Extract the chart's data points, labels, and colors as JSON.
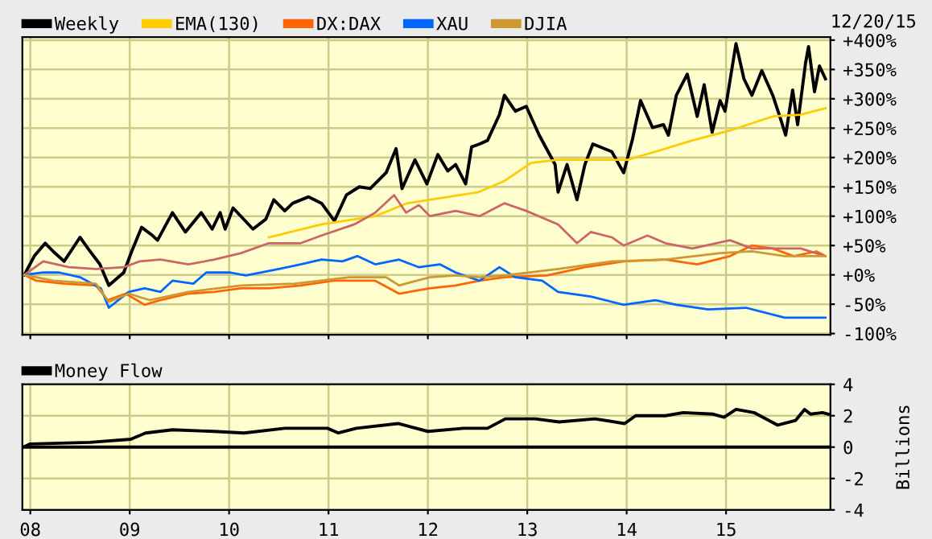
{
  "chart_data": [
    {
      "type": "line",
      "annotations": [
        "12/20/15"
      ],
      "legend": "top",
      "grid": true,
      "tick_labels": "y",
      "xlim": [
        2007.92,
        2016.05
      ],
      "ylim": [
        -102,
        405
      ],
      "xticks": [
        {
          "value": 2008,
          "label": null
        },
        {
          "value": 2009,
          "label": null
        },
        {
          "value": 2010,
          "label": null
        },
        {
          "value": 2011,
          "label": null
        },
        {
          "value": 2012,
          "label": null
        },
        {
          "value": 2013,
          "label": null
        },
        {
          "value": 2014,
          "label": null
        },
        {
          "value": 2015,
          "label": null
        }
      ],
      "yticks": [
        {
          "value": -100,
          "label": "-100%"
        },
        {
          "value": -50,
          "label": "-50%"
        },
        {
          "value": 0,
          "label": "+0%"
        },
        {
          "value": 50,
          "label": "+50%"
        },
        {
          "value": 100,
          "label": "+100%"
        },
        {
          "value": 150,
          "label": "+150%"
        },
        {
          "value": 200,
          "label": "+200%"
        },
        {
          "value": 250,
          "label": "+250%"
        },
        {
          "value": 300,
          "label": "+300%"
        },
        {
          "value": 350,
          "label": "+350%"
        },
        {
          "value": 400,
          "label": "+400%"
        }
      ],
      "series": [
        {
          "name": "Weekly",
          "color": "#000000",
          "x": [
            2007.94,
            2008.04,
            2008.15,
            2008.23,
            2008.34,
            2008.5,
            2008.58,
            2008.7,
            2008.79,
            2008.94,
            2009.02,
            2009.12,
            2009.23,
            2009.28,
            2009.43,
            2009.56,
            2009.72,
            2009.83,
            2009.91,
            2009.96,
            2010.04,
            2010.24,
            2010.37,
            2010.45,
            2010.56,
            2010.64,
            2010.8,
            2010.93,
            2011.06,
            2011.18,
            2011.31,
            2011.42,
            2011.58,
            2011.68,
            2011.74,
            2011.87,
            2011.99,
            2012.1,
            2012.2,
            2012.28,
            2012.38,
            2012.44,
            2012.52,
            2012.6,
            2012.72,
            2012.77,
            2012.88,
            2012.99,
            2013.12,
            2013.28,
            2013.31,
            2013.4,
            2013.5,
            2013.58,
            2013.66,
            2013.85,
            2013.97,
            2014.06,
            2014.14,
            2014.26,
            2014.37,
            2014.42,
            2014.5,
            2014.61,
            2014.71,
            2014.78,
            2014.86,
            2014.94,
            2014.99,
            2015.1,
            2015.18,
            2015.26,
            2015.36,
            2015.47,
            2015.55,
            2015.6,
            2015.67,
            2015.72,
            2015.8,
            2015.83,
            2015.89,
            2015.94,
            2016.0
          ],
          "values": [
            0,
            32,
            54,
            40,
            23,
            64,
            45,
            18,
            -18,
            4,
            40,
            81,
            67,
            59,
            106,
            73,
            106,
            78,
            106,
            78,
            114,
            78,
            95,
            128,
            109,
            122,
            133,
            122,
            92,
            136,
            150,
            147,
            174,
            215,
            147,
            196,
            155,
            205,
            177,
            188,
            155,
            218,
            223,
            229,
            273,
            306,
            279,
            287,
            238,
            188,
            141,
            188,
            128,
            188,
            223,
            210,
            174,
            232,
            297,
            251,
            256,
            238,
            306,
            342,
            270,
            324,
            243,
            297,
            279,
            394,
            334,
            306,
            348,
            306,
            265,
            238,
            315,
            256,
            361,
            389,
            312,
            356,
            334
          ]
        },
        {
          "name": "EMA(130)",
          "color": "#ffcc00",
          "x": [
            2010.4,
            2010.93,
            2011.47,
            2011.79,
            2012.51,
            2012.77,
            2013.04,
            2013.31,
            2013.74,
            2014.01,
            2014.29,
            2014.66,
            2015.04,
            2015.47,
            2015.75,
            2016.0
          ],
          "values": [
            64,
            86,
            100,
            122,
            141,
            160,
            191,
            196,
            196,
            196,
            210,
            229,
            246,
            270,
            273,
            284
          ]
        },
        {
          "name": "DX:DAX",
          "color": "#ff6600",
          "x": [
            2007.94,
            2008.06,
            2008.34,
            2008.66,
            2008.78,
            2008.96,
            2009.15,
            2009.31,
            2009.59,
            2009.85,
            2010.12,
            2010.4,
            2010.72,
            2011.05,
            2011.47,
            2011.71,
            2012.02,
            2012.28,
            2012.52,
            2012.77,
            2013.2,
            2013.58,
            2013.97,
            2014.39,
            2014.71,
            2015.04,
            2015.26,
            2015.47,
            2015.68,
            2015.91,
            2016.0
          ],
          "values": [
            0,
            -10,
            -15,
            -18,
            -43,
            -32,
            -51,
            -43,
            -32,
            -29,
            -23,
            -23,
            -18,
            -10,
            -10,
            -32,
            -23,
            -18,
            -10,
            -4,
            -1,
            13,
            23,
            26,
            18,
            32,
            50,
            45,
            32,
            40,
            32
          ]
        },
        {
          "color": "#cc6666",
          "x": [
            2007.94,
            2008.13,
            2008.39,
            2008.66,
            2008.94,
            2009.1,
            2009.31,
            2009.59,
            2009.85,
            2010.12,
            2010.4,
            2010.72,
            2010.93,
            2011.26,
            2011.47,
            2011.66,
            2011.78,
            2011.91,
            2012.02,
            2012.28,
            2012.52,
            2012.77,
            2012.99,
            2013.31,
            2013.5,
            2013.64,
            2013.85,
            2013.97,
            2014.21,
            2014.39,
            2014.66,
            2015.04,
            2015.26,
            2015.47,
            2015.75,
            2016.0
          ],
          "values": [
            0,
            23,
            13,
            10,
            13,
            23,
            26,
            18,
            26,
            37,
            54,
            54,
            67,
            86,
            106,
            136,
            106,
            119,
            100,
            109,
            100,
            122,
            109,
            86,
            54,
            73,
            64,
            50,
            67,
            54,
            45,
            59,
            45,
            45,
            45,
            32
          ]
        },
        {
          "name": "XAU",
          "color": "#0066ff",
          "x": [
            2007.94,
            2008.13,
            2008.29,
            2008.5,
            2008.71,
            2008.79,
            2008.99,
            2009.15,
            2009.31,
            2009.43,
            2009.64,
            2009.77,
            2010.01,
            2010.17,
            2010.5,
            2010.72,
            2010.93,
            2011.14,
            2011.29,
            2011.47,
            2011.71,
            2011.91,
            2012.12,
            2012.28,
            2012.52,
            2012.72,
            2012.88,
            2013.15,
            2013.31,
            2013.64,
            2013.97,
            2014.29,
            2014.5,
            2014.82,
            2015.2,
            2015.59,
            2016.0
          ],
          "values": [
            0,
            4,
            4,
            -4,
            -23,
            -56,
            -29,
            -23,
            -29,
            -10,
            -15,
            4,
            4,
            -1,
            10,
            18,
            26,
            23,
            32,
            18,
            26,
            13,
            18,
            4,
            -10,
            13,
            -4,
            -10,
            -29,
            -37,
            -51,
            -43,
            -51,
            -59,
            -56,
            -73,
            -73
          ]
        },
        {
          "name": "DJIA",
          "color": "#cc9933",
          "x": [
            2007.94,
            2008.23,
            2008.66,
            2008.79,
            2008.99,
            2009.2,
            2009.59,
            2010.12,
            2010.66,
            2011.21,
            2011.58,
            2011.71,
            2012.02,
            2012.28,
            2012.52,
            2012.77,
            2013.31,
            2013.85,
            2014.39,
            2014.94,
            2015.26,
            2015.59,
            2016.0
          ],
          "values": [
            0,
            -10,
            -15,
            -46,
            -32,
            -43,
            -29,
            -18,
            -15,
            -4,
            -4,
            -18,
            -4,
            -1,
            -4,
            -1,
            10,
            23,
            26,
            37,
            40,
            32,
            32
          ]
        }
      ]
    },
    {
      "type": "line",
      "ylabel": "Billions",
      "legend": "top",
      "grid": true,
      "xlim": [
        2007.92,
        2016.05
      ],
      "ylim": [
        -4,
        4
      ],
      "xticks": [
        {
          "value": 2008,
          "label": "08"
        },
        {
          "value": 2009,
          "label": "09"
        },
        {
          "value": 2010,
          "label": "10"
        },
        {
          "value": 2011,
          "label": "11"
        },
        {
          "value": 2012,
          "label": "12"
        },
        {
          "value": 2013,
          "label": "13"
        },
        {
          "value": 2014,
          "label": "14"
        },
        {
          "value": 2015,
          "label": "15"
        }
      ],
      "yticks": [
        -4,
        -2,
        0,
        2,
        4
      ],
      "ref_lines": [
        {
          "axis": "y",
          "value": 0,
          "color": "#000000"
        }
      ],
      "series": [
        {
          "name": "Money Flow",
          "color": "#000000",
          "x": [
            2007.93,
            2008.0,
            2008.6,
            2009.01,
            2009.16,
            2009.43,
            2009.85,
            2010.15,
            2010.56,
            2010.99,
            2011.1,
            2011.28,
            2011.7,
            2012.0,
            2012.36,
            2012.6,
            2012.78,
            2013.08,
            2013.32,
            2013.68,
            2013.98,
            2014.09,
            2014.39,
            2014.57,
            2014.87,
            2014.98,
            2015.1,
            2015.28,
            2015.52,
            2015.7,
            2015.79,
            2015.85,
            2015.97,
            2016.03
          ],
          "values": [
            0,
            0.2,
            0.3,
            0.5,
            0.9,
            1.1,
            1.0,
            0.9,
            1.2,
            1.2,
            0.9,
            1.2,
            1.5,
            1.0,
            1.2,
            1.2,
            1.8,
            1.8,
            1.6,
            1.8,
            1.5,
            2.0,
            2.0,
            2.2,
            2.1,
            1.9,
            2.4,
            2.2,
            1.4,
            1.7,
            2.4,
            2.1,
            2.2,
            2.1
          ]
        }
      ]
    }
  ]
}
